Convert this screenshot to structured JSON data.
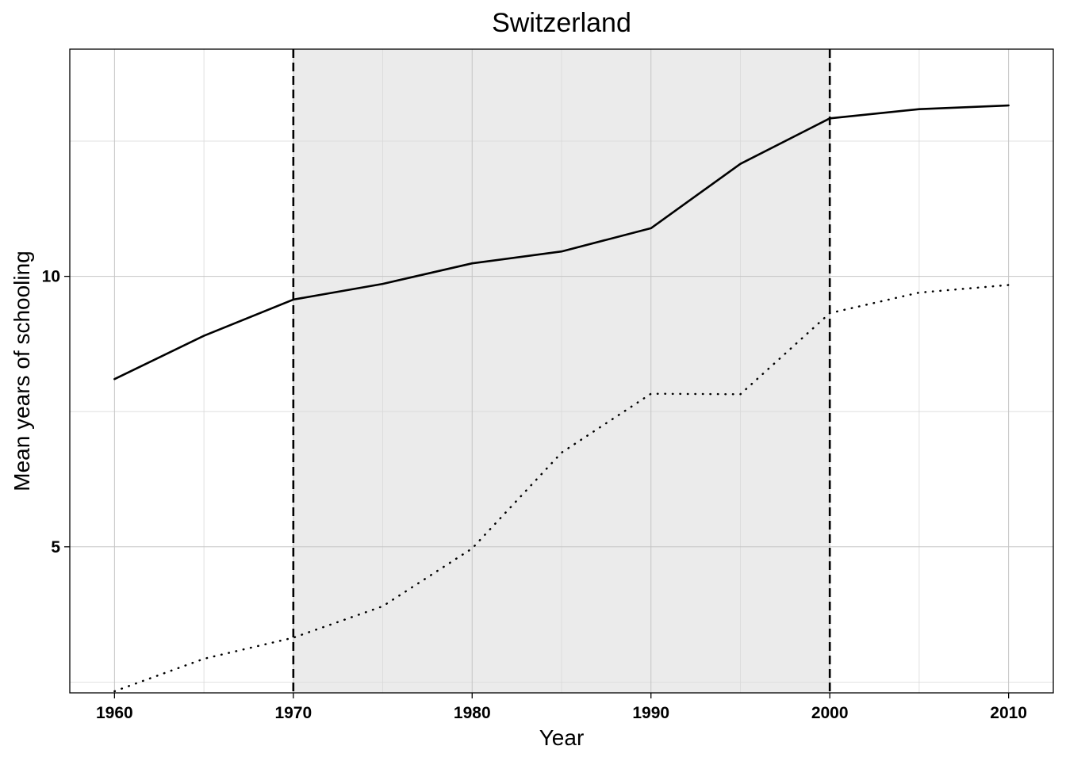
{
  "chart_data": {
    "type": "line",
    "title": "Switzerland",
    "xlabel": "Year",
    "ylabel": "Mean years of schooling",
    "xlim": [
      1957.5,
      2012.5
    ],
    "ylim": [
      2.3,
      14.2
    ],
    "x_ticks": [
      "1960",
      "1970",
      "1980",
      "1990",
      "2000",
      "2010"
    ],
    "y_ticks": [
      "5",
      "10"
    ],
    "grid": true,
    "shaded_region": {
      "x_start": 1970,
      "x_end": 2000,
      "color": "#ebebeb"
    },
    "vlines": [
      {
        "x": 1970,
        "style": "dashed"
      },
      {
        "x": 2000,
        "style": "dashed"
      }
    ],
    "x": [
      1960,
      1965,
      1970,
      1975,
      1980,
      1985,
      1990,
      1995,
      2000,
      2005,
      2010
    ],
    "series": [
      {
        "style": "solid",
        "color": "#000000",
        "values": [
          8.1,
          8.9,
          9.57,
          9.86,
          10.24,
          10.46,
          10.89,
          12.08,
          12.92,
          13.09,
          13.16
        ]
      },
      {
        "style": "dotted",
        "color": "#000000",
        "values": [
          2.33,
          2.93,
          3.32,
          3.9,
          4.97,
          6.74,
          7.83,
          7.82,
          9.32,
          9.7,
          9.84
        ]
      }
    ]
  }
}
